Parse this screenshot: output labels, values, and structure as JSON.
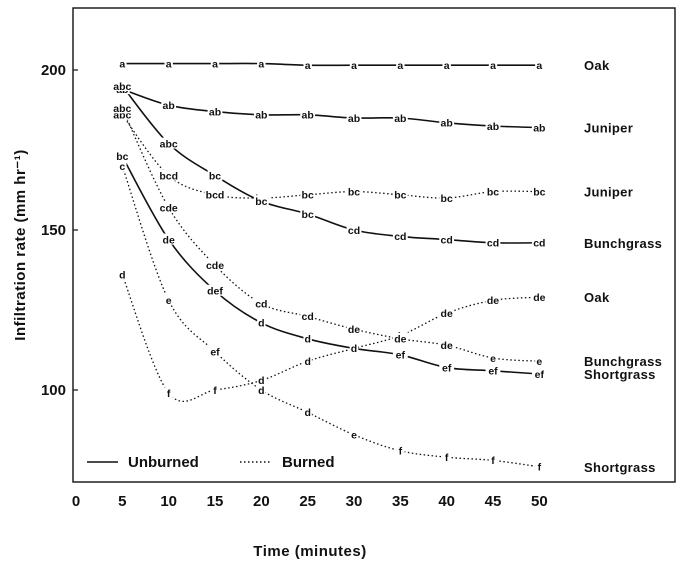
{
  "chart_data": {
    "type": "line",
    "xlabel": "Time (minutes)",
    "ylabel": "Infiltration rate (mm hr⁻¹)",
    "xlim": [
      0,
      60
    ],
    "ylim": [
      70,
      220
    ],
    "x_ticks": [
      0,
      5,
      10,
      15,
      20,
      25,
      30,
      35,
      40,
      45,
      50
    ],
    "y_ticks": [
      100,
      150,
      200
    ],
    "legend": {
      "placement": "bottom-left",
      "entries": [
        {
          "label": "Unburned",
          "style": "solid"
        },
        {
          "label": "Burned",
          "style": "dotted"
        }
      ]
    },
    "x": [
      5,
      10,
      15,
      20,
      25,
      30,
      35,
      40,
      45,
      50
    ],
    "series": [
      {
        "name": "Oak",
        "style": "solid",
        "values": [
          202,
          202,
          202,
          202,
          201.5,
          201.5,
          201.5,
          201.5,
          201.5,
          201.5
        ],
        "letters": [
          "a",
          "a",
          "a",
          "a",
          "a",
          "a",
          "a",
          "a",
          "a",
          "a"
        ]
      },
      {
        "name": "Juniper",
        "style": "solid",
        "values": [
          194,
          189,
          187,
          186,
          186,
          185,
          185,
          183.5,
          182.5,
          182
        ],
        "letters": [
          "ab",
          "ab",
          "ab",
          "ab",
          "ab",
          "ab",
          "ab",
          "ab",
          "ab",
          "ab"
        ]
      },
      {
        "name": "Juniper",
        "style": "dotted",
        "values": [
          186,
          167,
          161,
          160,
          161,
          162,
          161,
          160,
          162,
          162
        ],
        "letters": [
          "abc",
          "bcd",
          "bcd",
          "bc",
          "bc",
          "bc",
          "bc",
          "bc",
          "bc",
          "bc"
        ]
      },
      {
        "name": "Bunchgrass",
        "style": "solid",
        "values": [
          195,
          177,
          167,
          159,
          155,
          150,
          148,
          147,
          146,
          146
        ],
        "letters": [
          "abc",
          "abc",
          "bc",
          "bc",
          "bc",
          "cd",
          "cd",
          "cd",
          "cd",
          "cd"
        ]
      },
      {
        "name": "Oak",
        "style": "dotted",
        "values": [
          136,
          99,
          100,
          103,
          109,
          113,
          117,
          124,
          128,
          129
        ],
        "letters": [
          "d",
          "f",
          "f",
          "d",
          "d",
          "e",
          "de",
          "de",
          "de",
          "de"
        ]
      },
      {
        "name": "Bunchgrass",
        "style": "dotted",
        "values": [
          188,
          157,
          139,
          127,
          123,
          119,
          116,
          114,
          110,
          109
        ],
        "letters": [
          "abc",
          "cde",
          "cde",
          "cd",
          "cd",
          "de",
          "de",
          "de",
          "e",
          "e"
        ]
      },
      {
        "name": "Shortgrass",
        "style": "solid",
        "values": [
          173,
          147,
          131,
          121,
          116,
          113,
          111,
          107,
          106,
          105
        ],
        "letters": [
          "bc",
          "de",
          "def",
          "d",
          "d",
          "d",
          "ef",
          "ef",
          "ef",
          "ef"
        ]
      },
      {
        "name": "Shortgrass",
        "style": "dotted",
        "values": [
          170,
          128,
          112,
          100,
          93,
          86,
          81,
          79,
          78,
          76
        ],
        "letters": [
          "c",
          "e",
          "ef",
          "d",
          "d",
          "e",
          "f",
          "f",
          "f",
          "f"
        ]
      }
    ]
  }
}
